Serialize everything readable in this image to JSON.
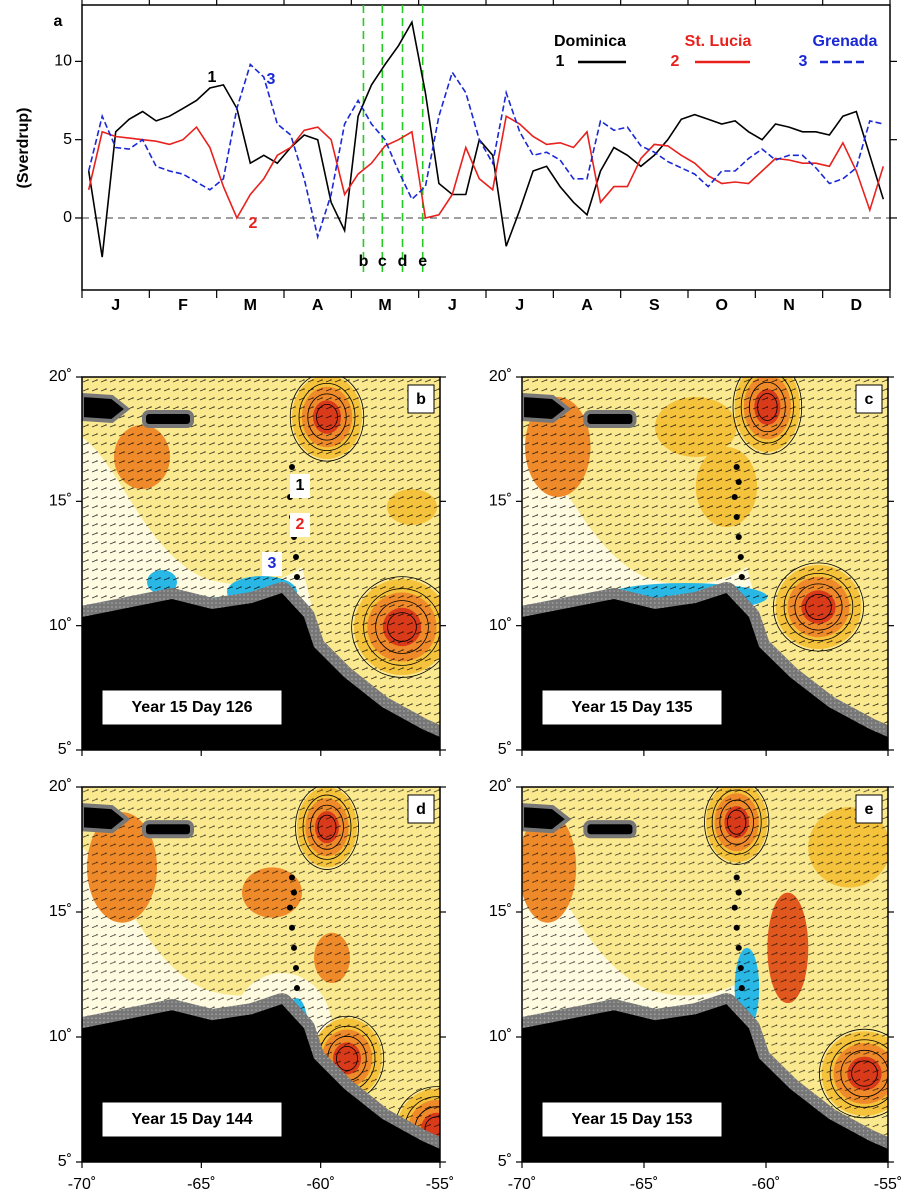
{
  "chart_data": [
    {
      "type": "line",
      "panel": "a",
      "y_label": "(Sverdrup)",
      "categories": [
        null,
        null,
        "J",
        null,
        null,
        null,
        null,
        "F",
        null,
        null,
        null,
        null,
        "M",
        null,
        null,
        null,
        null,
        "A",
        null,
        null,
        null,
        null,
        "M",
        null,
        null,
        null,
        null,
        "J",
        null,
        null,
        null,
        null,
        "J",
        null,
        null,
        null,
        null,
        "A",
        null,
        null,
        null,
        null,
        "S",
        null,
        null,
        null,
        null,
        "O",
        null,
        null,
        null,
        null,
        "N",
        null,
        null,
        null,
        null,
        "D",
        null,
        null
      ],
      "ylim": [
        -4.6,
        13.6
      ],
      "yticks": [
        0,
        5,
        10
      ],
      "event_labels": [
        "b",
        "c",
        "d",
        "e"
      ],
      "series": [
        {
          "name": "Dominica",
          "label": "1",
          "color": "#000000",
          "dashed": false,
          "values": [
            3,
            -2.5,
            5.5,
            6.3,
            6.8,
            6.2,
            6.5,
            7,
            7.5,
            8.3,
            8.5,
            7,
            3.5,
            4,
            3.5,
            4.5,
            5.3,
            5,
            1,
            -0.8,
            6.5,
            8.5,
            9.8,
            11,
            12.5,
            8,
            2.2,
            1.5,
            1.5,
            5,
            4,
            -1.8,
            0.5,
            3,
            3.3,
            2,
            1,
            0.2,
            3,
            4.5,
            4,
            3.3,
            4,
            5,
            6.3,
            6.6,
            6.3,
            6,
            6.2,
            5.5,
            5,
            6,
            5.8,
            5.5,
            5.5,
            5.3,
            6.5,
            6.8,
            4,
            1.2
          ]
        },
        {
          "name": "St. Lucia",
          "label": "2",
          "color": "#e8211d",
          "dashed": false,
          "values": [
            1.8,
            5.5,
            5.2,
            5.1,
            5,
            4.9,
            4.7,
            5,
            5.8,
            4.5,
            2,
            0,
            1.5,
            2.5,
            4,
            4.5,
            5.6,
            5.8,
            5,
            1.5,
            2.8,
            3.5,
            4.6,
            5,
            5.5,
            0,
            0.2,
            1.5,
            4.5,
            2.5,
            1.8,
            6.5,
            6,
            5.2,
            4.7,
            4.8,
            4.5,
            5.5,
            1,
            2,
            2,
            3.8,
            4.7,
            4.6,
            4,
            3.5,
            2.7,
            2.2,
            2.3,
            2.2,
            3,
            3.8,
            3.7,
            3.5,
            3.5,
            3.3,
            4.8,
            3,
            0.5,
            3.3
          ]
        },
        {
          "name": "Grenada",
          "label": "3",
          "color": "#1a28d6",
          "dashed": true,
          "values": [
            3,
            6.5,
            4.5,
            4.4,
            5,
            3.3,
            3,
            2.8,
            2.3,
            1.8,
            2.5,
            7,
            9.8,
            9,
            6,
            5.3,
            2.5,
            -1.2,
            1.5,
            6,
            7.5,
            6,
            5,
            3,
            1.2,
            2,
            6.5,
            9.3,
            8,
            5,
            3.5,
            8,
            5.5,
            4,
            4.2,
            3.7,
            2.5,
            2.5,
            6.2,
            5.6,
            5.8,
            4.6,
            4.2,
            3.6,
            3.2,
            2.8,
            2,
            3,
            3,
            3.8,
            4.4,
            3.7,
            4,
            4,
            3.2,
            2.2,
            2.5,
            3.2,
            6.2,
            6
          ]
        }
      ]
    },
    {
      "type": "map",
      "panel": "b",
      "annotation": "Year 15 Day 126",
      "site_labels": [
        "1",
        "2",
        "3"
      ],
      "ylim": [
        5,
        20
      ],
      "yticks": [
        {
          "value": 20,
          "label": "20˚"
        },
        {
          "value": 15,
          "label": "15˚"
        },
        {
          "value": 10,
          "label": "10˚"
        },
        {
          "value": 5,
          "label": "5˚"
        }
      ]
    },
    {
      "type": "map",
      "panel": "c",
      "annotation": "Year 15 Day 135",
      "ylim": [
        5,
        20
      ],
      "yticks": [
        {
          "value": 20,
          "label": "20˚"
        },
        {
          "value": 15,
          "label": "15˚"
        },
        {
          "value": 10,
          "label": "10˚"
        },
        {
          "value": 5,
          "label": "5˚"
        }
      ]
    },
    {
      "type": "map",
      "panel": "d",
      "annotation": "Year 15 Day 144",
      "xlim": [
        -70,
        -55
      ],
      "xticks": [
        {
          "value": -70,
          "label": "-70˚"
        },
        {
          "value": -65,
          "label": "-65˚"
        },
        {
          "value": -60,
          "label": "-60˚"
        },
        {
          "value": -55,
          "label": "-55˚"
        }
      ],
      "ylim": [
        5,
        20
      ],
      "yticks": [
        {
          "value": 20,
          "label": "20˚"
        },
        {
          "value": 15,
          "label": "15˚"
        },
        {
          "value": 10,
          "label": "10˚"
        },
        {
          "value": 5,
          "label": "5˚"
        }
      ]
    },
    {
      "type": "map",
      "panel": "e",
      "annotation": "Year 15 Day 153",
      "xlim": [
        -70,
        -55
      ],
      "xticks": [
        {
          "value": -70,
          "label": "-70˚"
        },
        {
          "value": -65,
          "label": "-65˚"
        },
        {
          "value": -60,
          "label": "-60˚"
        },
        {
          "value": -55,
          "label": "-55˚"
        }
      ],
      "ylim": [
        5,
        20
      ],
      "yticks": [
        {
          "value": 20,
          "label": "20˚"
        },
        {
          "value": 15,
          "label": "15˚"
        },
        {
          "value": 10,
          "label": "10˚"
        },
        {
          "value": 5,
          "label": "5˚"
        }
      ]
    }
  ]
}
